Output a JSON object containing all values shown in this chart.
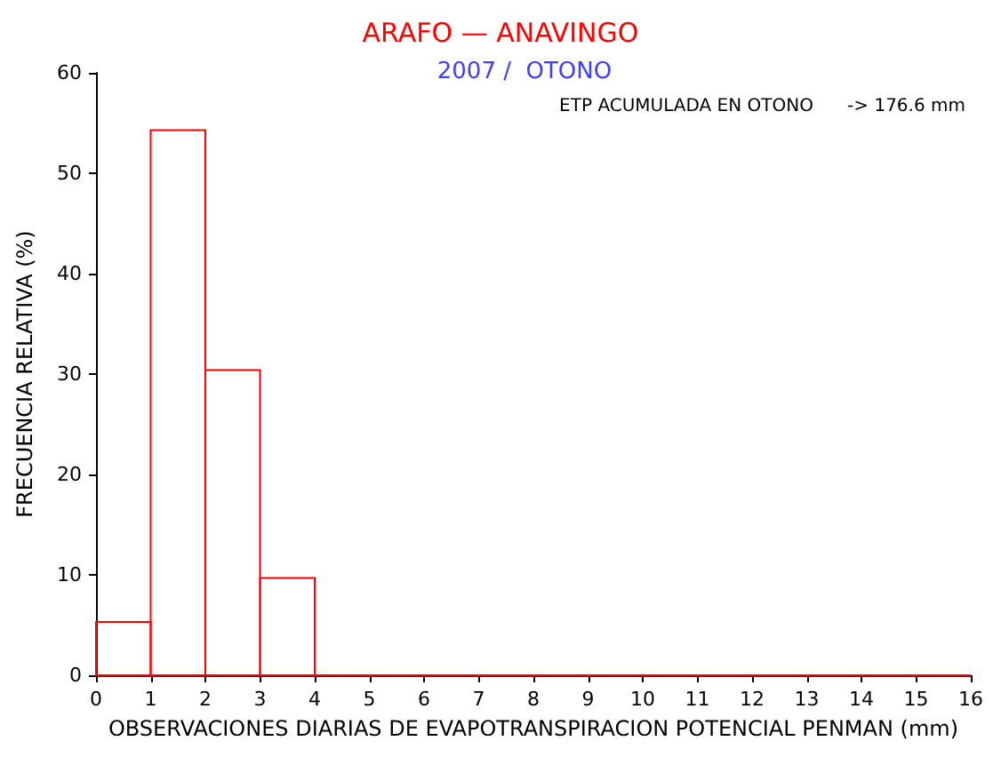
{
  "chart_data": {
    "type": "histogram",
    "title": "ARAFO — ANAVINGO",
    "subtitle": "2007 /  OTONO",
    "xlabel": "OBSERVACIONES DIARIAS DE EVAPOTRANSPIRACION POTENCIAL PENMAN (mm)",
    "ylabel": "FRECUENCIA RELATIVA (%)",
    "annotations": [
      "ETP ACUMULADA EN OTONO      -> 176.6 mm"
    ],
    "bins": [
      0,
      1,
      2,
      3,
      4,
      5,
      6,
      7,
      8,
      9,
      10,
      11,
      12,
      13,
      14,
      15,
      16
    ],
    "values": [
      5.3,
      54.3,
      30.4,
      9.7,
      0,
      0,
      0,
      0,
      0,
      0,
      0,
      0,
      0,
      0,
      0,
      0
    ],
    "color": "#ff0000",
    "xlim": [
      0,
      16
    ],
    "xticks": [
      0,
      1,
      2,
      3,
      4,
      5,
      6,
      7,
      8,
      9,
      10,
      11,
      12,
      13,
      14,
      15,
      16
    ],
    "ylim": [
      0,
      60
    ],
    "yticks": [
      0,
      10,
      20,
      30,
      40,
      50,
      60
    ],
    "grid": false
  }
}
